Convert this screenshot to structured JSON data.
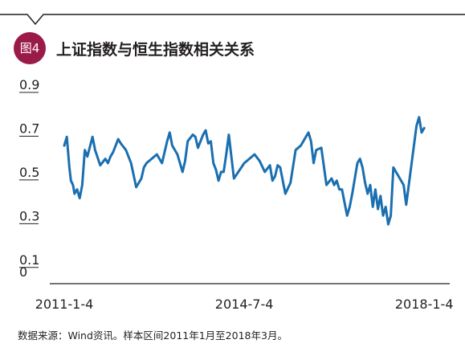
{
  "header": {
    "badge": "图4",
    "title": "上证指数与恒生指数相关关系"
  },
  "source": "数据来源：Wind资讯。样本区间2011年1月至2018年3月。",
  "colors": {
    "line": "#1a6fb0",
    "badge": "#9b1b48",
    "axis": "#231f20"
  },
  "chart_data": {
    "type": "line",
    "title": "上证指数与恒生指数相关关系",
    "xlabel": "",
    "ylabel": "",
    "grid": false,
    "legend": "none",
    "ylim": [
      0,
      0.9
    ],
    "y_ticks": [
      "0",
      "0.1",
      "0.3",
      "0.5",
      "0.7",
      "0.9"
    ],
    "x_ticks": [
      "2011-1-4",
      "2014-7-4",
      "2018-1-4"
    ],
    "x_tick_positions": [
      0,
      3.5,
      7.0
    ],
    "xlim": [
      0,
      7.2
    ],
    "x_unit": "years since 2011-1-4",
    "series": [
      {
        "name": "",
        "x": [
          0.0,
          0.05,
          0.1,
          0.13,
          0.17,
          0.2,
          0.25,
          0.3,
          0.35,
          0.4,
          0.45,
          0.55,
          0.6,
          0.7,
          0.8,
          0.85,
          0.9,
          0.95,
          1.0,
          1.05,
          1.1,
          1.2,
          1.3,
          1.4,
          1.5,
          1.55,
          1.6,
          1.7,
          1.8,
          1.9,
          1.95,
          2.0,
          2.05,
          2.1,
          2.2,
          2.3,
          2.35,
          2.4,
          2.5,
          2.55,
          2.6,
          2.7,
          2.75,
          2.8,
          2.85,
          2.9,
          2.95,
          3.0,
          3.05,
          3.1,
          3.15,
          3.2,
          3.3,
          3.5,
          3.6,
          3.7,
          3.8,
          3.9,
          4.0,
          4.05,
          4.1,
          4.15,
          4.2,
          4.3,
          4.4,
          4.5,
          4.6,
          4.7,
          4.75,
          4.8,
          4.85,
          4.9,
          5.0,
          5.1,
          5.2,
          5.25,
          5.3,
          5.35,
          5.4,
          5.5,
          5.55,
          5.6,
          5.7,
          5.75,
          5.8,
          5.85,
          5.9,
          5.95,
          6.0,
          6.05,
          6.1,
          6.15,
          6.2,
          6.25,
          6.3,
          6.35,
          6.4,
          6.5,
          6.6,
          6.65,
          6.8,
          6.85,
          6.9,
          6.95,
          7.0
        ],
        "values": [
          0.62,
          0.66,
          0.52,
          0.46,
          0.44,
          0.4,
          0.42,
          0.38,
          0.44,
          0.6,
          0.57,
          0.66,
          0.6,
          0.53,
          0.56,
          0.54,
          0.57,
          0.59,
          0.62,
          0.65,
          0.63,
          0.6,
          0.54,
          0.43,
          0.47,
          0.52,
          0.54,
          0.56,
          0.58,
          0.54,
          0.59,
          0.64,
          0.68,
          0.62,
          0.58,
          0.5,
          0.55,
          0.64,
          0.67,
          0.66,
          0.61,
          0.67,
          0.69,
          0.63,
          0.64,
          0.54,
          0.51,
          0.46,
          0.5,
          0.5,
          0.58,
          0.67,
          0.47,
          0.54,
          0.56,
          0.58,
          0.55,
          0.5,
          0.53,
          0.46,
          0.48,
          0.53,
          0.52,
          0.4,
          0.45,
          0.6,
          0.62,
          0.66,
          0.68,
          0.64,
          0.54,
          0.6,
          0.61,
          0.44,
          0.47,
          0.44,
          0.46,
          0.42,
          0.42,
          0.3,
          0.34,
          0.4,
          0.54,
          0.56,
          0.52,
          0.45,
          0.4,
          0.44,
          0.34,
          0.42,
          0.33,
          0.39,
          0.3,
          0.34,
          0.26,
          0.3,
          0.52,
          0.48,
          0.44,
          0.35,
          0.62,
          0.71,
          0.75,
          0.68,
          0.7
        ]
      }
    ]
  }
}
